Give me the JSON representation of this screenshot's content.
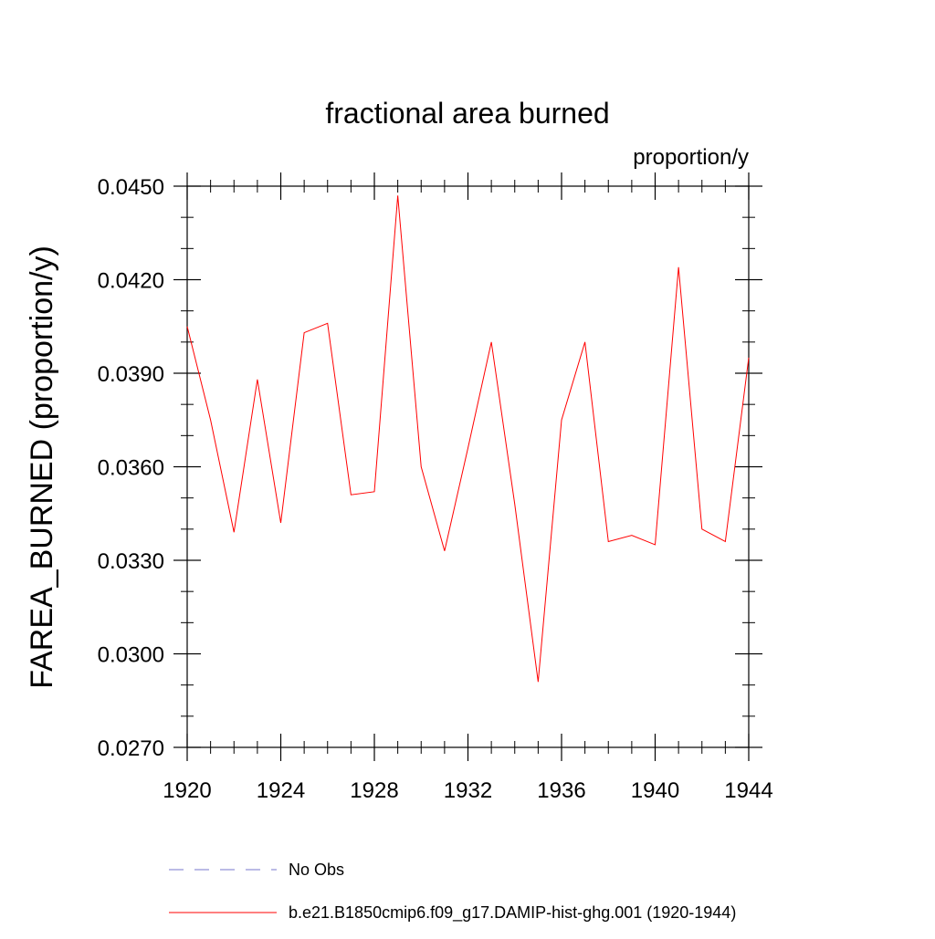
{
  "chart_data": {
    "type": "line",
    "title": "fractional area burned",
    "units_label": "proportion/y",
    "xlabel": "",
    "ylabel": "FAREA_BURNED  (proportion/y)",
    "xlim": [
      1920,
      1944
    ],
    "ylim": [
      0.027,
      0.045
    ],
    "x_ticks": [
      1920,
      1924,
      1928,
      1932,
      1936,
      1940,
      1944
    ],
    "x_tick_labels": [
      "1920",
      "1924",
      "1928",
      "1932",
      "1936",
      "1940",
      "1944"
    ],
    "y_ticks": [
      0.027,
      0.03,
      0.033,
      0.036,
      0.039,
      0.042,
      0.045
    ],
    "y_tick_labels": [
      "0.0270",
      "0.0300",
      "0.0330",
      "0.0360",
      "0.0390",
      "0.0420",
      "0.0450"
    ],
    "grid": false,
    "legend_position": "bottom",
    "series": [
      {
        "name": "b.e21.B1850cmip6.f09_g17.DAMIP-hist-ghg.001 (1920-1944)",
        "color": "#ff0000",
        "style": "solid",
        "x": [
          1920,
          1921,
          1922,
          1923,
          1924,
          1925,
          1926,
          1927,
          1928,
          1929,
          1930,
          1931,
          1932,
          1933,
          1934,
          1935,
          1936,
          1937,
          1938,
          1939,
          1940,
          1941,
          1942,
          1943,
          1944
        ],
        "y": [
          0.0405,
          0.0375,
          0.0339,
          0.0388,
          0.0342,
          0.0403,
          0.0406,
          0.0351,
          0.0352,
          0.0447,
          0.036,
          0.0333,
          0.0366,
          0.04,
          0.0348,
          0.0291,
          0.0375,
          0.04,
          0.0336,
          0.0338,
          0.0335,
          0.0424,
          0.034,
          0.0336,
          0.0395
        ]
      }
    ],
    "legend": [
      {
        "label": "No Obs",
        "color": "#7777cc",
        "style": "dashed"
      },
      {
        "label": "b.e21.B1850cmip6.f09_g17.DAMIP-hist-ghg.001 (1920-1944)",
        "color": "#ff0000",
        "style": "solid"
      }
    ]
  }
}
